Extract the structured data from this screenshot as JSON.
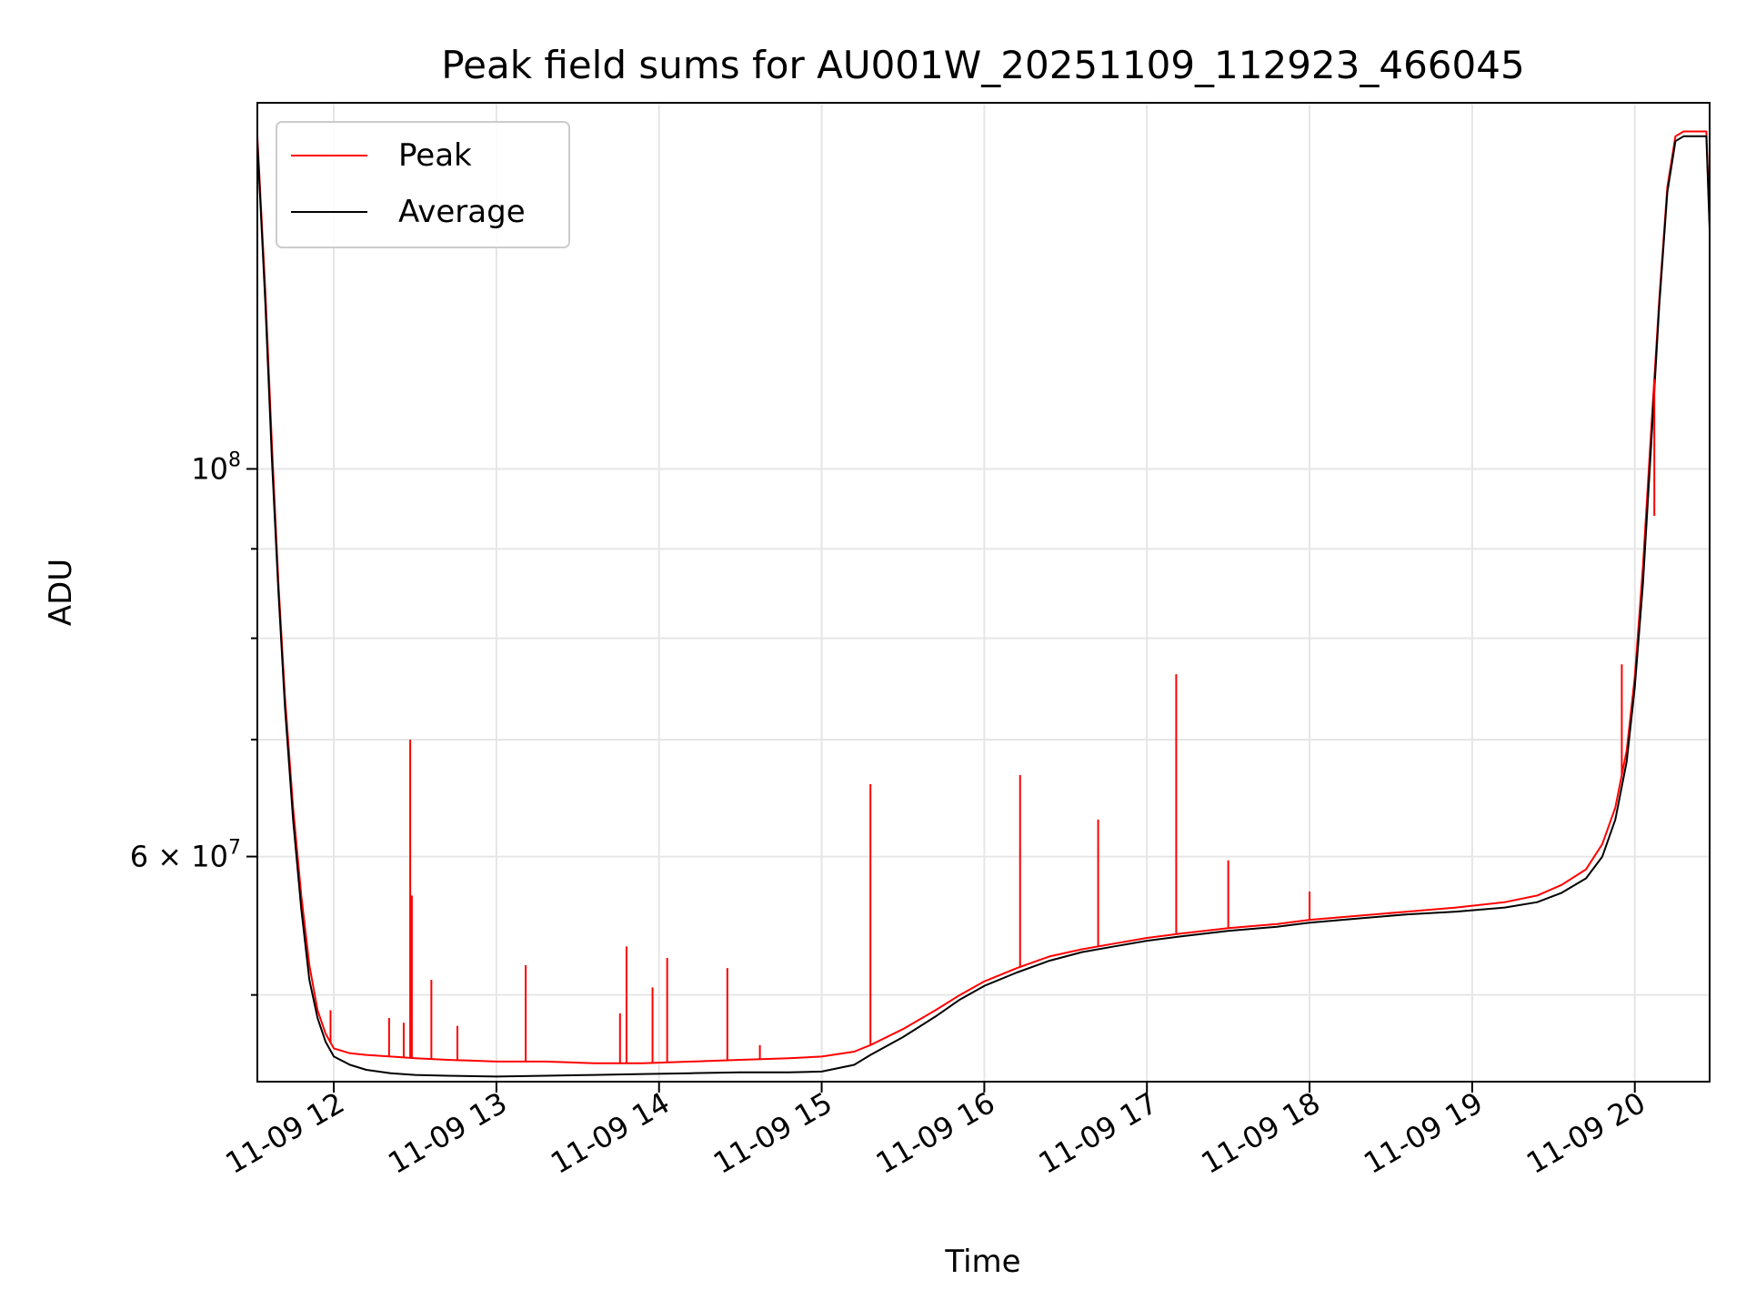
{
  "chart_data": {
    "type": "line",
    "title": "Peak field sums for AU001W_20251109_112923_466045",
    "xlabel": "Time",
    "ylabel": "ADU",
    "x_unit": "hour of 2025-11-09",
    "xlim": [
      11.53,
      20.46
    ],
    "ylim": [
      44600000,
      162000000
    ],
    "yscale": "log",
    "grid": true,
    "legend_position": "upper-left",
    "x_ticks": [
      {
        "value": 12,
        "label": "11-09 12"
      },
      {
        "value": 13,
        "label": "11-09 13"
      },
      {
        "value": 14,
        "label": "11-09 14"
      },
      {
        "value": 15,
        "label": "11-09 15"
      },
      {
        "value": 16,
        "label": "11-09 16"
      },
      {
        "value": 17,
        "label": "11-09 17"
      },
      {
        "value": 18,
        "label": "11-09 18"
      },
      {
        "value": 19,
        "label": "11-09 19"
      },
      {
        "value": 20,
        "label": "11-09 20"
      }
    ],
    "y_major_ticks": [
      {
        "value": 100000000,
        "base": "10",
        "exp": "8"
      },
      {
        "value": 60000000,
        "base": "6 × 10",
        "exp": "7"
      }
    ],
    "y_minor_ticks": [
      50000000,
      70000000,
      80000000,
      90000000
    ],
    "series": [
      {
        "name": "Peak",
        "color": "#ff0000",
        "x": [
          11.53,
          11.58,
          11.62,
          11.66,
          11.7,
          11.75,
          11.8,
          11.85,
          11.9,
          11.95,
          12.0,
          12.1,
          12.2,
          12.35,
          12.5,
          12.7,
          13.0,
          13.3,
          13.6,
          13.9,
          14.2,
          14.5,
          14.8,
          15.0,
          15.2,
          15.3,
          15.5,
          15.7,
          15.85,
          16.0,
          16.2,
          16.4,
          16.6,
          16.8,
          17.0,
          17.2,
          17.5,
          17.8,
          18.0,
          18.3,
          18.6,
          18.9,
          19.2,
          19.4,
          19.55,
          19.7,
          19.8,
          19.88,
          19.95,
          20.0,
          20.05,
          20.1,
          20.15,
          20.2,
          20.25,
          20.3,
          20.38,
          20.44,
          20.46
        ],
        "y": [
          155000000,
          126000000,
          103000000,
          86000000,
          74000000,
          64000000,
          57000000,
          52000000,
          49000000,
          47500000,
          46600000,
          46300000,
          46200000,
          46100000,
          46000000,
          45900000,
          45800000,
          45800000,
          45700000,
          45700000,
          45800000,
          45900000,
          46000000,
          46100000,
          46400000,
          46800000,
          47800000,
          49000000,
          50000000,
          50900000,
          51800000,
          52600000,
          53100000,
          53500000,
          53900000,
          54200000,
          54600000,
          54900000,
          55200000,
          55500000,
          55800000,
          56100000,
          56500000,
          57000000,
          57800000,
          59000000,
          61000000,
          64000000,
          69000000,
          76000000,
          88000000,
          105000000,
          125000000,
          145000000,
          155000000,
          156000000,
          156000000,
          156000000,
          138000000
        ]
      },
      {
        "name": "Average",
        "color": "#000000",
        "x": [
          11.53,
          11.58,
          11.62,
          11.66,
          11.7,
          11.75,
          11.8,
          11.85,
          11.9,
          11.95,
          12.0,
          12.1,
          12.2,
          12.35,
          12.5,
          12.7,
          13.0,
          13.3,
          13.6,
          13.9,
          14.2,
          14.5,
          14.8,
          15.0,
          15.2,
          15.3,
          15.5,
          15.7,
          15.85,
          16.0,
          16.2,
          16.4,
          16.6,
          16.8,
          17.0,
          17.2,
          17.5,
          17.8,
          18.0,
          18.3,
          18.6,
          18.9,
          19.2,
          19.4,
          19.55,
          19.7,
          19.8,
          19.88,
          19.95,
          20.0,
          20.05,
          20.1,
          20.15,
          20.2,
          20.25,
          20.3,
          20.38,
          20.44,
          20.46
        ],
        "y": [
          154000000,
          124000000,
          101000000,
          85000000,
          73000000,
          63000000,
          56000000,
          51000000,
          48500000,
          47000000,
          46100000,
          45600000,
          45300000,
          45100000,
          45000000,
          44950000,
          44900000,
          44950000,
          45000000,
          45050000,
          45100000,
          45150000,
          45150000,
          45200000,
          45600000,
          46200000,
          47300000,
          48600000,
          49700000,
          50600000,
          51500000,
          52300000,
          52900000,
          53300000,
          53700000,
          54000000,
          54400000,
          54700000,
          55000000,
          55300000,
          55600000,
          55800000,
          56100000,
          56500000,
          57200000,
          58300000,
          60000000,
          63000000,
          68000000,
          75000000,
          86000000,
          103000000,
          124000000,
          144000000,
          154000000,
          155000000,
          155000000,
          155000000,
          137000000
        ]
      }
    ],
    "spikes": [
      {
        "x": 11.98,
        "y": 49000000
      },
      {
        "x": 12.34,
        "y": 48500000
      },
      {
        "x": 12.43,
        "y": 48200000
      },
      {
        "x": 12.47,
        "y": 70000000
      },
      {
        "x": 12.48,
        "y": 57000000
      },
      {
        "x": 12.6,
        "y": 51000000
      },
      {
        "x": 12.76,
        "y": 48000000
      },
      {
        "x": 13.18,
        "y": 52000000
      },
      {
        "x": 13.76,
        "y": 48800000
      },
      {
        "x": 13.8,
        "y": 53300000
      },
      {
        "x": 13.96,
        "y": 50500000
      },
      {
        "x": 14.05,
        "y": 52500000
      },
      {
        "x": 14.42,
        "y": 51800000
      },
      {
        "x": 14.62,
        "y": 46800000
      },
      {
        "x": 15.3,
        "y": 66000000
      },
      {
        "x": 16.22,
        "y": 66800000
      },
      {
        "x": 16.7,
        "y": 63000000
      },
      {
        "x": 17.18,
        "y": 76300000
      },
      {
        "x": 17.5,
        "y": 59700000
      },
      {
        "x": 18.0,
        "y": 57300000
      },
      {
        "x": 19.92,
        "y": 77300000
      },
      {
        "x": 20.12,
        "y": 94000000
      }
    ]
  },
  "legend": {
    "peak_label": "Peak",
    "average_label": "Average"
  }
}
